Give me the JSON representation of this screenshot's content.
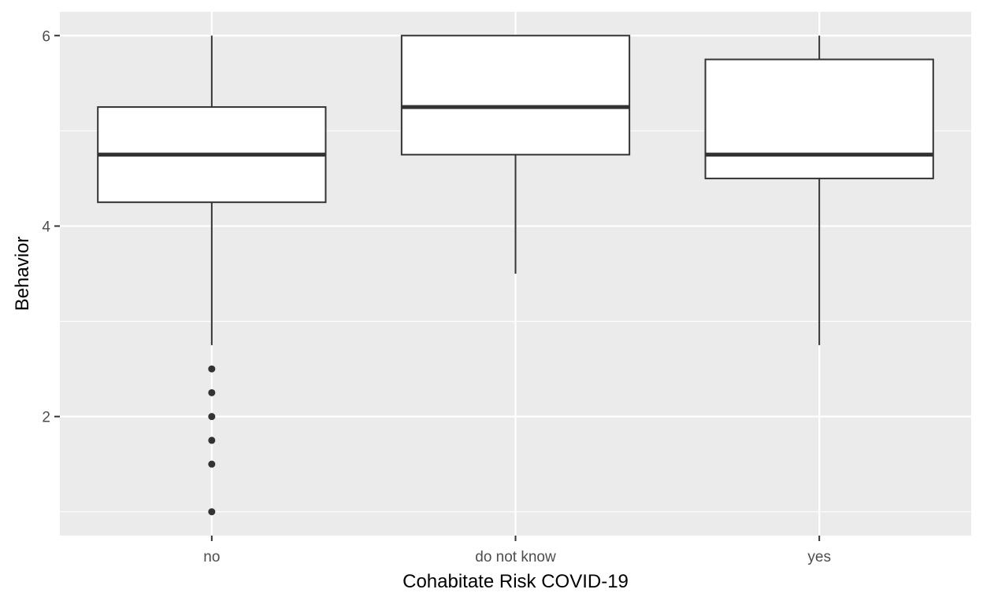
{
  "chart_data": {
    "type": "boxplot",
    "title": "",
    "xlabel": "Cohabitate Risk COVID-19",
    "ylabel": "Behavior",
    "categories": [
      "no",
      "do not know",
      "yes"
    ],
    "boxes": [
      {
        "category": "no",
        "whisker_low": 2.75,
        "q1": 4.25,
        "median": 4.75,
        "q3": 5.25,
        "whisker_high": 6.0,
        "outliers": [
          2.5,
          2.25,
          2.0,
          1.75,
          1.5,
          1.0
        ]
      },
      {
        "category": "do not know",
        "whisker_low": 3.5,
        "q1": 4.75,
        "median": 5.25,
        "q3": 6.0,
        "whisker_high": 6.0,
        "outliers": []
      },
      {
        "category": "yes",
        "whisker_low": 2.75,
        "q1": 4.5,
        "median": 4.75,
        "q3": 5.75,
        "whisker_high": 6.0,
        "outliers": []
      }
    ],
    "y_ticks": [
      2,
      4,
      6
    ],
    "y_tick_labels": [
      "2",
      "4",
      "6"
    ],
    "ylim": [
      0.75,
      6.25
    ],
    "grid": true,
    "colors": {
      "panel_background": "#ebebeb",
      "grid_line": "#ffffff",
      "box_fill": "#ffffff",
      "box_line": "#333333",
      "tick_label": "#4d4d4d",
      "axis_title": "#000000"
    }
  }
}
